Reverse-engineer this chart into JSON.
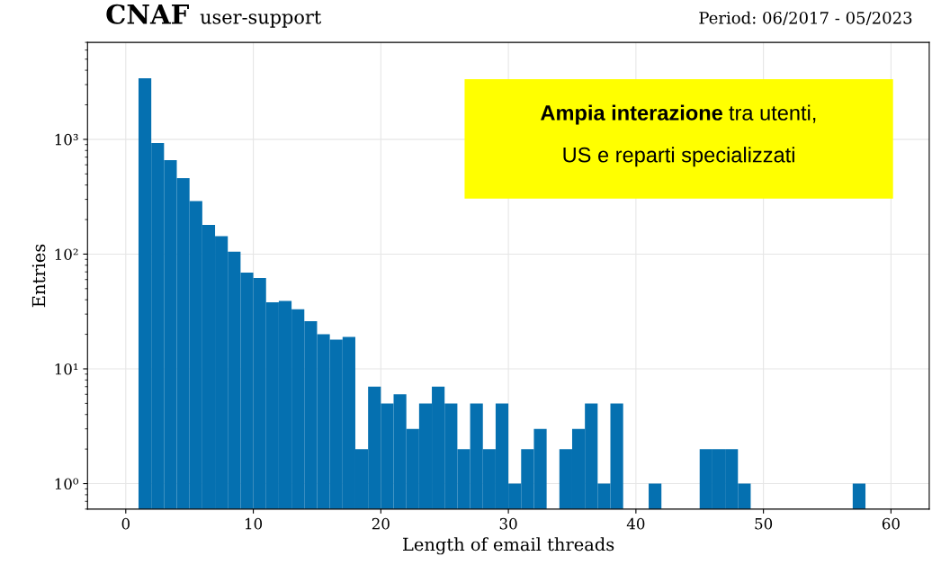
{
  "chart_data": {
    "type": "histogram",
    "title": "CNAF",
    "subtitle": "user-support",
    "xlabel": "Length of email threads",
    "ylabel": "Entries",
    "annotations": [
      "Period: 06/2017 - 05/2023",
      "Ampia interazione",
      "tra utenti,",
      "US e reparti specializzati"
    ],
    "bins": [
      1,
      2,
      3,
      4,
      5,
      6,
      7,
      8,
      9,
      10,
      11,
      12,
      13,
      14,
      15,
      16,
      17,
      18,
      19,
      20,
      21,
      22,
      23,
      24,
      25,
      26,
      27,
      28,
      29,
      30,
      31,
      32,
      33,
      34,
      35,
      36,
      37,
      38,
      39,
      40,
      41,
      42,
      43,
      44,
      45,
      46,
      47,
      48,
      49,
      50,
      51,
      52,
      53,
      54,
      55,
      56,
      57,
      58
    ],
    "values": [
      3400,
      930,
      660,
      460,
      290,
      180,
      143,
      105,
      69,
      62,
      38,
      39,
      33,
      26,
      20,
      18,
      19,
      2,
      7,
      5,
      6,
      3,
      5,
      7,
      5,
      2,
      5,
      2,
      5,
      1,
      2,
      3,
      null,
      2,
      3,
      5,
      1,
      5,
      null,
      null,
      1,
      null,
      null,
      null,
      2,
      2,
      2,
      1,
      null,
      null,
      null,
      null,
      null,
      null,
      null,
      null,
      1
    ],
    "color": "#0570b0",
    "log": "y",
    "xlim": [
      -3,
      63
    ],
    "xticks": [
      0,
      10,
      20,
      30,
      40,
      50,
      60
    ],
    "ylim": [
      0.6,
      7000
    ],
    "yticks": [
      {
        "value": 1,
        "label": "10⁰"
      },
      {
        "value": 10,
        "label": "10¹"
      },
      {
        "value": 100,
        "label": "10²"
      },
      {
        "value": 1000,
        "label": "10³"
      }
    ],
    "grid": true
  }
}
